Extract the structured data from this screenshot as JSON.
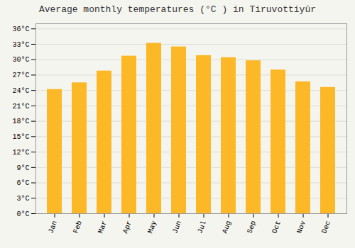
{
  "chart_data": {
    "type": "bar",
    "title": "Average monthly temperatures (°C ) in Tiruvottiyūr",
    "categories": [
      "Jan",
      "Feb",
      "Mar",
      "Apr",
      "May",
      "Jun",
      "Jul",
      "Aug",
      "Sep",
      "Oct",
      "Nov",
      "Dec"
    ],
    "values": [
      24.2,
      25.5,
      27.8,
      30.7,
      33.2,
      32.5,
      30.8,
      30.4,
      29.8,
      28.0,
      25.7,
      24.6
    ],
    "color": "#FDB827",
    "ylim": [
      0,
      37
    ],
    "yticks": [
      {
        "value": 0,
        "label": "0°C"
      },
      {
        "value": 3,
        "label": "3°C"
      },
      {
        "value": 6,
        "label": "6°C"
      },
      {
        "value": 9,
        "label": "9°C"
      },
      {
        "value": 12,
        "label": "12°C"
      },
      {
        "value": 15,
        "label": "15°C"
      },
      {
        "value": 18,
        "label": "18°C"
      },
      {
        "value": 21,
        "label": "21°C"
      },
      {
        "value": 24,
        "label": "24°C"
      },
      {
        "value": 27,
        "label": "27°C"
      },
      {
        "value": 30,
        "label": "30°C"
      },
      {
        "value": 33,
        "label": "33°C"
      },
      {
        "value": 36,
        "label": "36°C"
      }
    ],
    "grid": true
  }
}
